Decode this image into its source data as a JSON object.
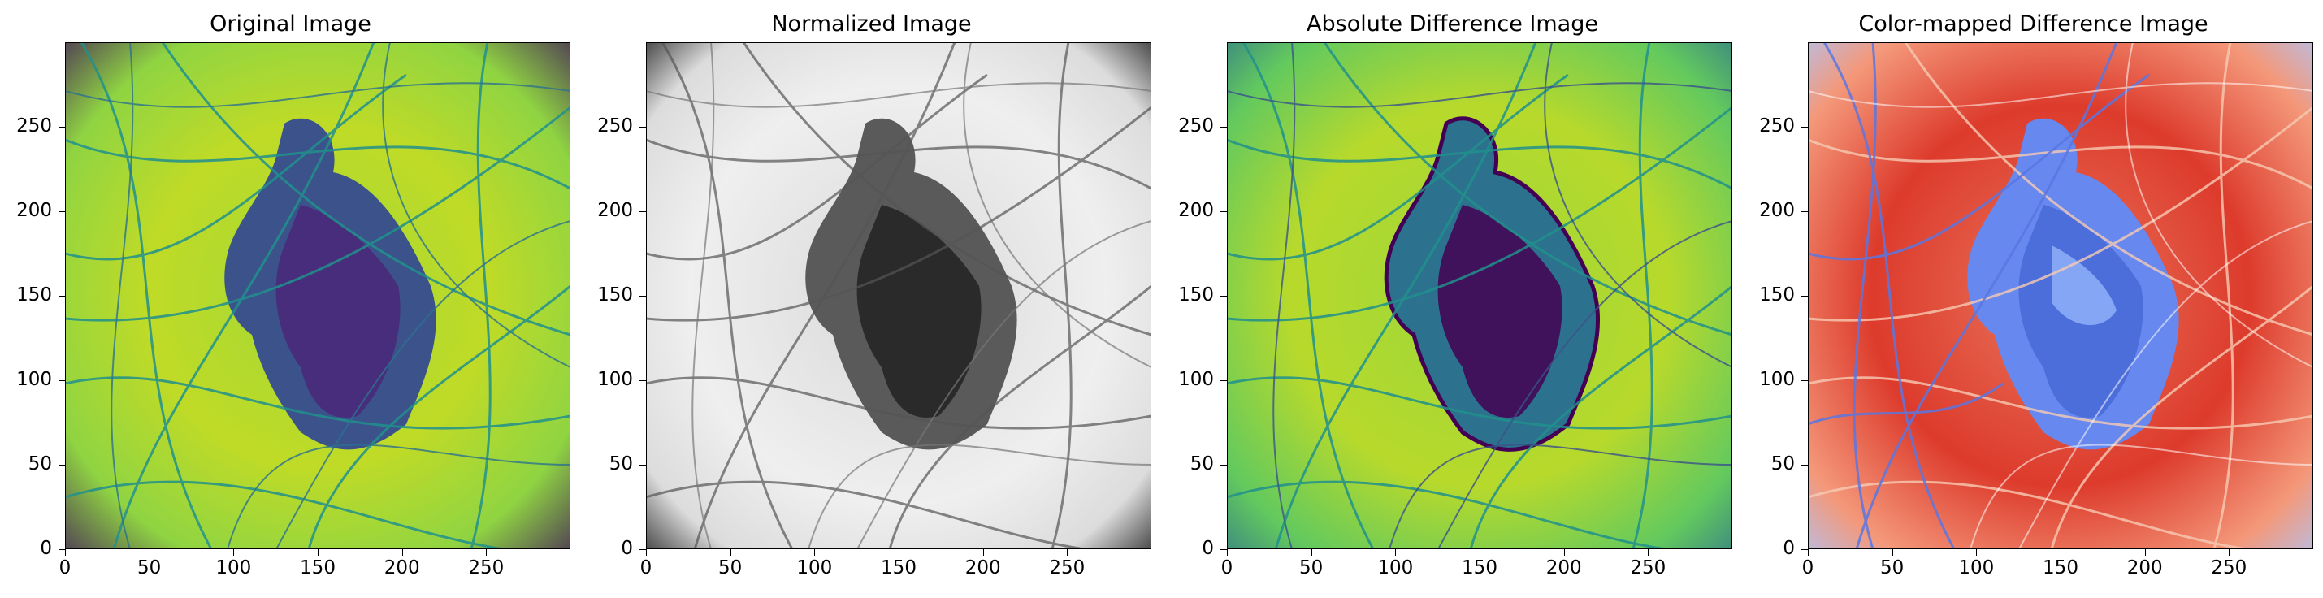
{
  "panels": [
    {
      "title": "Original Image",
      "colormap": "viridis"
    },
    {
      "title": "Normalized Image",
      "colormap": "gray"
    },
    {
      "title": "Absolute Difference Image",
      "colormap": "viridis"
    },
    {
      "title": "Color-mapped Difference Image",
      "colormap": "coolwarm"
    }
  ],
  "axes": {
    "x_ticks": [
      "0",
      "50",
      "100",
      "150",
      "200",
      "250"
    ],
    "y_ticks": [
      "0",
      "50",
      "100",
      "150",
      "200",
      "250"
    ],
    "x_range": [
      0,
      300
    ],
    "y_range": [
      0,
      300
    ]
  },
  "colors": {
    "viridis_dark": "#440154",
    "viridis_mid": "#21918c",
    "viridis_light": "#d8e219",
    "coolwarm_blue": "#3b4cc0",
    "coolwarm_red": "#dd3b2c"
  }
}
